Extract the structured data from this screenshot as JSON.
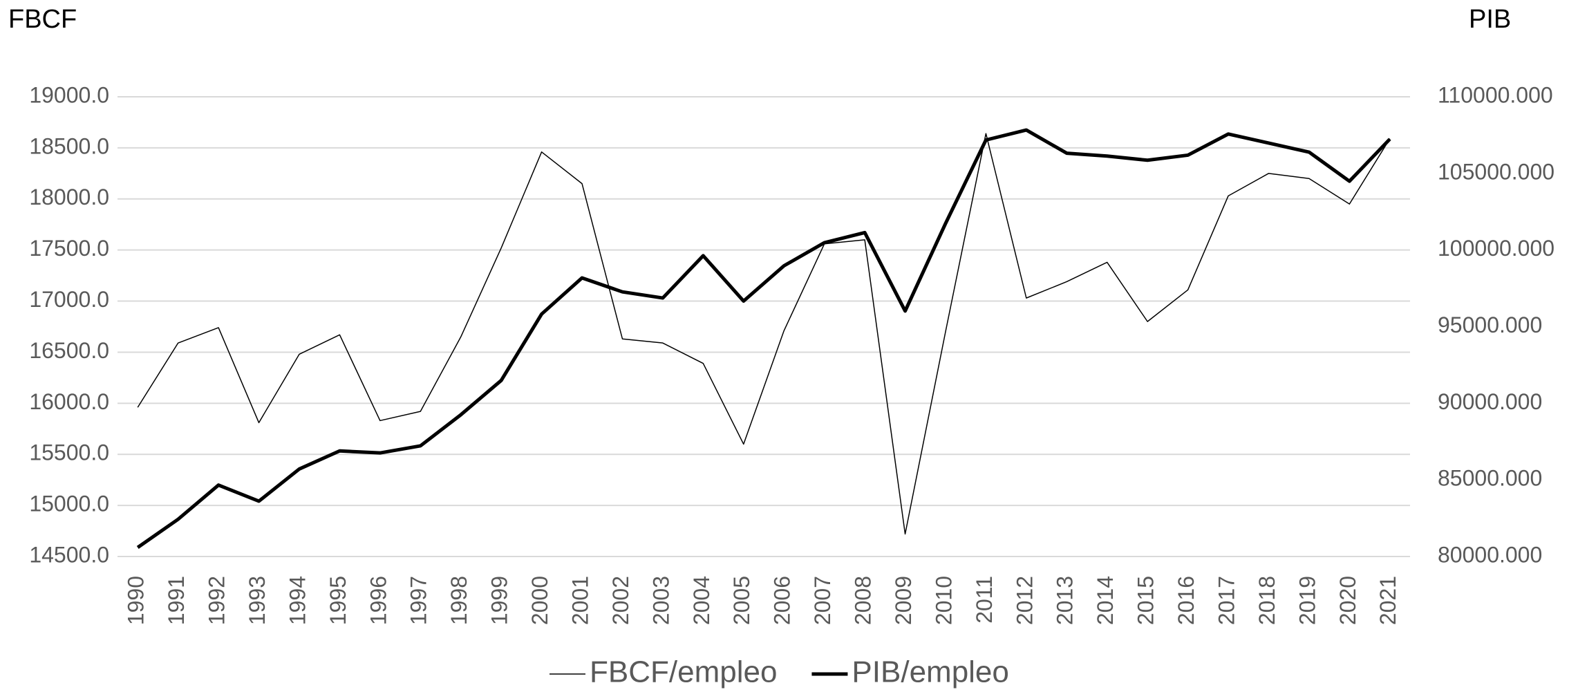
{
  "chart_data": {
    "type": "line",
    "y_axis_title": "FBCF",
    "y2_axis_title": "PIB",
    "categories": [
      "1990",
      "1991",
      "1992",
      "1993",
      "1994",
      "1995",
      "1996",
      "1997",
      "1998",
      "1999",
      "2000",
      "2001",
      "2002",
      "2003",
      "2004",
      "2005",
      "2006",
      "2007",
      "2008",
      "2009",
      "2010",
      "2011",
      "2012",
      "2013",
      "2014",
      "2015",
      "2016",
      "2017",
      "2018",
      "2019",
      "2020",
      "2021"
    ],
    "series": [
      {
        "name": "FBCF/empleo",
        "color": "#000000",
        "line_width": 1.5,
        "axis": "y",
        "values": [
          15960,
          16590,
          16740,
          15810,
          16480,
          16670,
          15830,
          15920,
          16650,
          17520,
          18460,
          18150,
          16630,
          16590,
          16390,
          15600,
          16710,
          17560,
          17600,
          14720,
          16700,
          18640,
          17030,
          17190,
          17380,
          16800,
          17110,
          18030,
          18250,
          18200,
          17950,
          18590
        ]
      },
      {
        "name": "PIB/empleo",
        "color": "#000000",
        "line_width": 5,
        "axis": "y2",
        "values": [
          80590,
          82430,
          84660,
          83610,
          85710,
          86890,
          86760,
          87220,
          89250,
          91490,
          95820,
          98180,
          97270,
          96870,
          99630,
          96670,
          98970,
          100480,
          101140,
          96020,
          101730,
          107180,
          107830,
          106320,
          106130,
          105860,
          106190,
          107570,
          106980,
          106390,
          104490,
          107240
        ]
      }
    ],
    "ylim": [
      14500,
      19000
    ],
    "yticks": [
      {
        "value": 14500,
        "label": "14500.0"
      },
      {
        "value": 15000,
        "label": "15000.0"
      },
      {
        "value": 15500,
        "label": "15500.0"
      },
      {
        "value": 16000,
        "label": "16000.0"
      },
      {
        "value": 16500,
        "label": "16500.0"
      },
      {
        "value": 17000,
        "label": "17000.0"
      },
      {
        "value": 17500,
        "label": "17500.0"
      },
      {
        "value": 18000,
        "label": "18000.0"
      },
      {
        "value": 18500,
        "label": "18500.0"
      },
      {
        "value": 19000,
        "label": "19000.0"
      }
    ],
    "y2lim": [
      80000,
      110000
    ],
    "y2ticks": [
      {
        "value": 80000,
        "label": "80000.000"
      },
      {
        "value": 85000,
        "label": "85000.000"
      },
      {
        "value": 90000,
        "label": "90000.000"
      },
      {
        "value": 95000,
        "label": "95000.000"
      },
      {
        "value": 100000,
        "label": "100000.000"
      },
      {
        "value": 105000,
        "label": "105000.000"
      },
      {
        "value": 110000,
        "label": "110000.000"
      }
    ],
    "grid": true,
    "legend": "bottom"
  }
}
